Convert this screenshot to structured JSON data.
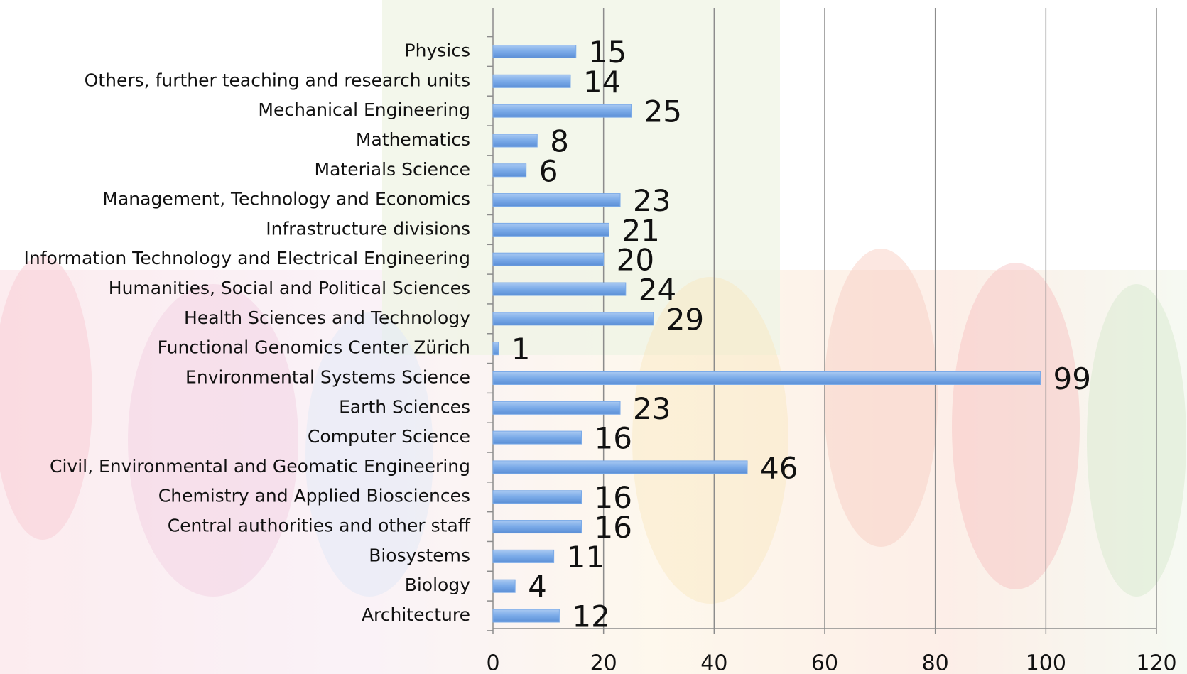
{
  "chart_data": {
    "type": "bar",
    "orientation": "horizontal",
    "categories": [
      "Physics",
      "Others, further teaching and research units",
      "Mechanical Engineering",
      "Mathematics",
      "Materials Science",
      "Management, Technology and Economics",
      "Infrastructure divisions",
      "Information Technology and Electrical Engineering",
      "Humanities, Social and Political Sciences",
      "Health Sciences and Technology",
      "Functional Genomics Center Zürich",
      "Environmental Systems Science",
      "Earth Sciences",
      "Computer Science",
      "Civil, Environmental and Geomatic Engineering",
      "Chemistry and Applied Biosciences",
      "Central authorities and other staff",
      "Biosystems",
      "Biology",
      "Architecture"
    ],
    "values": [
      15,
      14,
      25,
      8,
      6,
      23,
      21,
      20,
      24,
      29,
      1,
      99,
      23,
      16,
      46,
      16,
      16,
      11,
      4,
      12
    ],
    "color": "#7aaae8",
    "xlim": [
      0,
      120
    ],
    "xticks": [
      0,
      20,
      40,
      60,
      80,
      100,
      120
    ],
    "grid": true
  }
}
